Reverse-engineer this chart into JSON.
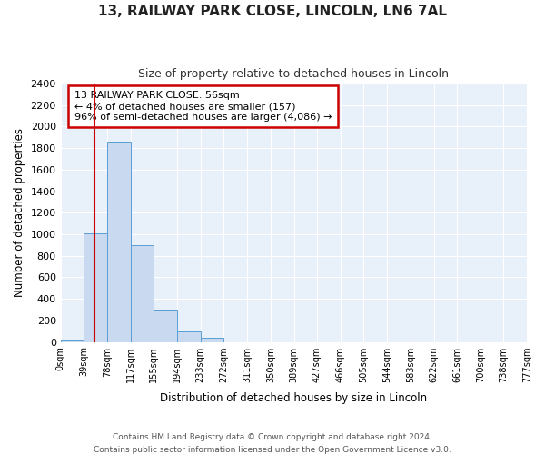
{
  "title1": "13, RAILWAY PARK CLOSE, LINCOLN, LN6 7AL",
  "title2": "Size of property relative to detached houses in Lincoln",
  "xlabel": "Distribution of detached houses by size in Lincoln",
  "ylabel": "Number of detached properties",
  "annotation_line1": "13 RAILWAY PARK CLOSE: 56sqm",
  "annotation_line2": "← 4% of detached houses are smaller (157)",
  "annotation_line3": "96% of semi-detached houses are larger (4,086) →",
  "footer1": "Contains HM Land Registry data © Crown copyright and database right 2024.",
  "footer2": "Contains public sector information licensed under the Open Government Licence v3.0.",
  "bar_edges": [
    0,
    39,
    78,
    117,
    155,
    194,
    233,
    272,
    311,
    350,
    389,
    427,
    466,
    505,
    544,
    583,
    622,
    661,
    700,
    738,
    777
  ],
  "bar_heights": [
    20,
    1010,
    1860,
    900,
    300,
    100,
    40,
    0,
    0,
    0,
    0,
    0,
    0,
    0,
    0,
    0,
    0,
    0,
    0,
    0
  ],
  "bar_color": "#c8d9f0",
  "bar_edge_color": "#5a9fd4",
  "plot_bg_color": "#e8f0fa",
  "fig_bg_color": "#ffffff",
  "grid_color": "#ffffff",
  "vline_x": 56,
  "vline_color": "#cc0000",
  "ylim": [
    0,
    2400
  ],
  "yticks": [
    0,
    200,
    400,
    600,
    800,
    1000,
    1200,
    1400,
    1600,
    1800,
    2000,
    2200,
    2400
  ],
  "annotation_box_edge_color": "#cc0000",
  "annotation_box_face_color": "#ffffff",
  "tick_labels": [
    "0sqm",
    "39sqm",
    "78sqm",
    "117sqm",
    "155sqm",
    "194sqm",
    "233sqm",
    "272sqm",
    "311sqm",
    "350sqm",
    "389sqm",
    "427sqm",
    "466sqm",
    "505sqm",
    "544sqm",
    "583sqm",
    "622sqm",
    "661sqm",
    "700sqm",
    "738sqm",
    "777sqm"
  ]
}
